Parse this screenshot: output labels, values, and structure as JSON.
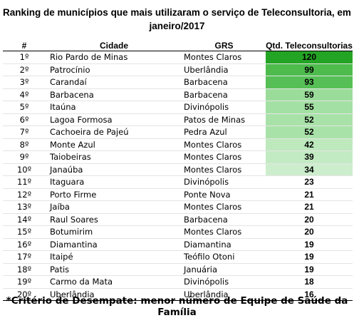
{
  "title": "Ranking de municípios que mais utilizaram o serviço de Teleconsultoria, em janeiro/2017",
  "headers": {
    "rank": "#",
    "city": "Cidade",
    "grs": "GRS",
    "qtd": "Qtd. Teleconsultorias"
  },
  "rows": [
    {
      "rank": "1º",
      "city": "Rio Pardo de Minas",
      "grs": "Montes Claros",
      "qtd": "120",
      "color": "#24a424"
    },
    {
      "rank": "2º",
      "city": "Patrocínio",
      "grs": "Uberlândia",
      "qtd": "99",
      "color": "#4dbc4d"
    },
    {
      "rank": "3º",
      "city": "Carandaí",
      "grs": "Barbacena",
      "qtd": "93",
      "color": "#56c056"
    },
    {
      "rank": "4º",
      "city": "Barbacena",
      "grs": "Barbacena",
      "qtd": "59",
      "color": "#9bdc9b"
    },
    {
      "rank": "5º",
      "city": "Itaúna",
      "grs": "Divinópolis",
      "qtd": "55",
      "color": "#a3e0a3"
    },
    {
      "rank": "6º",
      "city": "Lagoa Formosa",
      "grs": "Patos de Minas",
      "qtd": "52",
      "color": "#a9e2a9"
    },
    {
      "rank": "7º",
      "city": "Cachoeira de Pajeú",
      "grs": "Pedra Azul",
      "qtd": "52",
      "color": "#a9e2a9"
    },
    {
      "rank": "8º",
      "city": "Monte Azul",
      "grs": "Montes Claros",
      "qtd": "42",
      "color": "#bde9bd"
    },
    {
      "rank": "9º",
      "city": "Taiobeiras",
      "grs": "Montes Claros",
      "qtd": "39",
      "color": "#c3ebc3"
    },
    {
      "rank": "10º",
      "city": "Janaúba",
      "grs": "Montes Claros",
      "qtd": "34",
      "color": "#cdeecd"
    },
    {
      "rank": "11º",
      "city": "Itaguara",
      "grs": "Divinópolis",
      "qtd": "23",
      "color": "#ffffff"
    },
    {
      "rank": "12º",
      "city": "Porto Firme",
      "grs": "Ponte Nova",
      "qtd": "21",
      "color": "#ffffff"
    },
    {
      "rank": "13º",
      "city": "Jaíba",
      "grs": "Montes Claros",
      "qtd": "21",
      "color": "#ffffff"
    },
    {
      "rank": "14º",
      "city": "Raul Soares",
      "grs": "Barbacena",
      "qtd": "20",
      "color": "#ffffff"
    },
    {
      "rank": "15º",
      "city": "Botumirim",
      "grs": "Montes Claros",
      "qtd": "20",
      "color": "#ffffff"
    },
    {
      "rank": "16º",
      "city": "Diamantina",
      "grs": "Diamantina",
      "qtd": "19",
      "color": "#ffffff"
    },
    {
      "rank": "17º",
      "city": "Itaipé",
      "grs": "Teófilo Otoni",
      "qtd": "19",
      "color": "#ffffff"
    },
    {
      "rank": "18º",
      "city": "Patis",
      "grs": "Januária",
      "qtd": "19",
      "color": "#ffffff"
    },
    {
      "rank": "19º",
      "city": "Carmo da Mata",
      "grs": "Divinópolis",
      "qtd": "18",
      "color": "#ffffff"
    },
    {
      "rank": "20º",
      "city": "Uberlândia",
      "grs": "Uberlândia",
      "qtd": "16",
      "color": "#ffffff"
    }
  ],
  "footnote": "*Critério de Desempate: menor número de Equipe de Saúde da Família"
}
